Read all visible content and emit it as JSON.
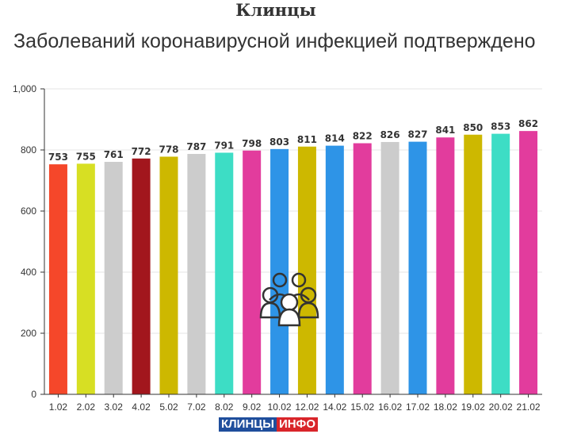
{
  "header": {
    "title": "Клинцы",
    "subtitle": "Заболеваний коронавирусной инфекцией подтверждено"
  },
  "logo": {
    "part1": "КЛИНЦЫ",
    "part2": "ИНФО"
  },
  "icon": "people-group-icon",
  "chart_data": {
    "type": "bar",
    "categories": [
      "1.02",
      "2.02",
      "3.02",
      "4.02",
      "5.02",
      "7.02",
      "8.02",
      "9.02",
      "10.02",
      "12.02",
      "14.02",
      "15.02",
      "16.02",
      "17.02",
      "18.02",
      "19.02",
      "20.02",
      "21.02"
    ],
    "values": [
      753,
      755,
      761,
      772,
      778,
      787,
      791,
      798,
      803,
      811,
      814,
      822,
      826,
      827,
      841,
      850,
      853,
      862
    ],
    "colors": [
      "#f5472a",
      "#d7df23",
      "#cccccc",
      "#a2161d",
      "#cdb800",
      "#cccccc",
      "#3dddc5",
      "#e23c9d",
      "#2e94e7",
      "#cdb800",
      "#2e94e7",
      "#e23c9d",
      "#cccccc",
      "#2e94e7",
      "#e23c9d",
      "#cdb800",
      "#3dddc5",
      "#e23c9d"
    ],
    "ylim": [
      0,
      1000
    ],
    "yticks": [
      0,
      200,
      400,
      600,
      800,
      1000
    ],
    "ytick_labels": [
      "0",
      "200",
      "400",
      "600",
      "800",
      "1,000"
    ],
    "grid": true,
    "xlabel": "",
    "ylabel": ""
  }
}
